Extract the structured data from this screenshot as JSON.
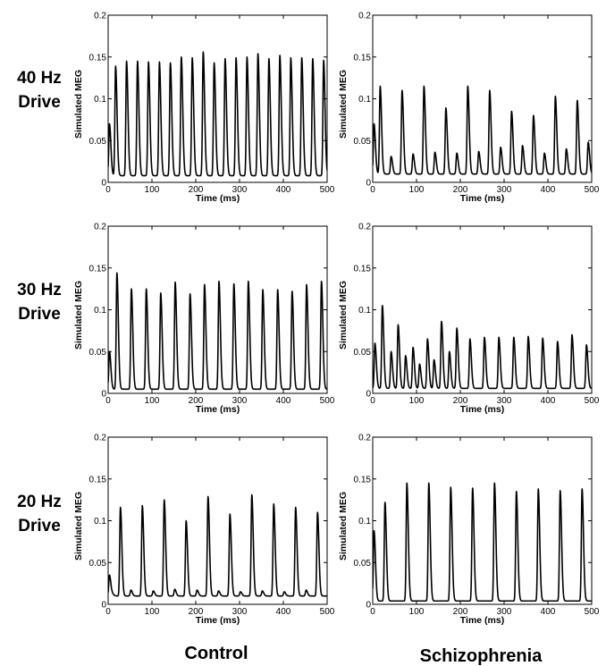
{
  "row_labels": [
    {
      "line1": "40 Hz",
      "line2": "Drive"
    },
    {
      "line1": "30 Hz",
      "line2": "Drive"
    },
    {
      "line1": "20 Hz",
      "line2": "Drive"
    }
  ],
  "col_labels": [
    "Control",
    "Schizophrenia"
  ],
  "colors": {
    "trace": "#000000",
    "axis": "#000000",
    "background": "#ffffff"
  },
  "chart_data": [
    {
      "type": "line",
      "row": 0,
      "col": 0,
      "title": "",
      "xlabel": "Time (ms)",
      "ylabel": "Simulated MEG",
      "xlim": [
        0,
        500
      ],
      "ylim": [
        0,
        0.2
      ],
      "xticks": [
        "0",
        "100",
        "200",
        "300",
        "400",
        "500"
      ],
      "yticks": [
        "0",
        "0.05",
        "0.1",
        "0.15",
        "0.2"
      ],
      "grid": false,
      "baseline": 0.008,
      "peaks": [
        {
          "t": 3,
          "v": 0.07
        },
        {
          "t": 17,
          "v": 0.139
        },
        {
          "t": 42,
          "v": 0.145
        },
        {
          "t": 67,
          "v": 0.145
        },
        {
          "t": 92,
          "v": 0.144
        },
        {
          "t": 117,
          "v": 0.144
        },
        {
          "t": 142,
          "v": 0.143
        },
        {
          "t": 167,
          "v": 0.15
        },
        {
          "t": 192,
          "v": 0.149
        },
        {
          "t": 217,
          "v": 0.156
        },
        {
          "t": 242,
          "v": 0.143
        },
        {
          "t": 267,
          "v": 0.148
        },
        {
          "t": 292,
          "v": 0.149
        },
        {
          "t": 317,
          "v": 0.15
        },
        {
          "t": 342,
          "v": 0.154
        },
        {
          "t": 367,
          "v": 0.148
        },
        {
          "t": 392,
          "v": 0.152
        },
        {
          "t": 417,
          "v": 0.149
        },
        {
          "t": 442,
          "v": 0.149
        },
        {
          "t": 467,
          "v": 0.148
        },
        {
          "t": 492,
          "v": 0.146
        }
      ]
    },
    {
      "type": "line",
      "row": 0,
      "col": 1,
      "title": "",
      "xlabel": "Time (ms)",
      "ylabel": "Simulated MEG",
      "xlim": [
        0,
        500
      ],
      "ylim": [
        0,
        0.2
      ],
      "xticks": [
        "0",
        "100",
        "200",
        "300",
        "400",
        "500"
      ],
      "yticks": [
        "0",
        "0.05",
        "0.1",
        "0.15",
        "0.2"
      ],
      "grid": false,
      "baseline": 0.01,
      "peaks": [
        {
          "t": 3,
          "v": 0.07
        },
        {
          "t": 17,
          "v": 0.115
        },
        {
          "t": 42,
          "v": 0.031
        },
        {
          "t": 67,
          "v": 0.11
        },
        {
          "t": 92,
          "v": 0.034
        },
        {
          "t": 117,
          "v": 0.115
        },
        {
          "t": 142,
          "v": 0.036
        },
        {
          "t": 167,
          "v": 0.089
        },
        {
          "t": 192,
          "v": 0.035
        },
        {
          "t": 217,
          "v": 0.115
        },
        {
          "t": 242,
          "v": 0.037
        },
        {
          "t": 267,
          "v": 0.11
        },
        {
          "t": 292,
          "v": 0.042
        },
        {
          "t": 317,
          "v": 0.085
        },
        {
          "t": 342,
          "v": 0.044
        },
        {
          "t": 367,
          "v": 0.08
        },
        {
          "t": 392,
          "v": 0.035
        },
        {
          "t": 417,
          "v": 0.103
        },
        {
          "t": 442,
          "v": 0.04
        },
        {
          "t": 467,
          "v": 0.098
        },
        {
          "t": 492,
          "v": 0.048
        }
      ]
    },
    {
      "type": "line",
      "row": 1,
      "col": 0,
      "title": "",
      "xlabel": "Time (ms)",
      "ylabel": "Simulated MEG",
      "xlim": [
        0,
        500
      ],
      "ylim": [
        0,
        0.2
      ],
      "xticks": [
        "0",
        "100",
        "200",
        "300",
        "400",
        "500"
      ],
      "yticks": [
        "0",
        "0.05",
        "0.1",
        "0.15",
        "0.2"
      ],
      "grid": false,
      "baseline": 0.005,
      "peaks": [
        {
          "t": 3,
          "v": 0.05
        },
        {
          "t": 20,
          "v": 0.144
        },
        {
          "t": 53,
          "v": 0.125
        },
        {
          "t": 87,
          "v": 0.125
        },
        {
          "t": 120,
          "v": 0.12
        },
        {
          "t": 153,
          "v": 0.133
        },
        {
          "t": 187,
          "v": 0.119
        },
        {
          "t": 220,
          "v": 0.13
        },
        {
          "t": 253,
          "v": 0.134
        },
        {
          "t": 287,
          "v": 0.131
        },
        {
          "t": 320,
          "v": 0.134
        },
        {
          "t": 353,
          "v": 0.124
        },
        {
          "t": 387,
          "v": 0.124
        },
        {
          "t": 420,
          "v": 0.122
        },
        {
          "t": 453,
          "v": 0.13
        },
        {
          "t": 487,
          "v": 0.134
        }
      ]
    },
    {
      "type": "line",
      "row": 1,
      "col": 1,
      "title": "",
      "xlabel": "Time (ms)",
      "ylabel": "Simulated MEG",
      "xlim": [
        0,
        500
      ],
      "ylim": [
        0,
        0.2
      ],
      "xticks": [
        "0",
        "100",
        "200",
        "300",
        "400",
        "500"
      ],
      "yticks": [
        "0",
        "0.05",
        "0.1",
        "0.15",
        "0.2"
      ],
      "grid": false,
      "baseline": 0.006,
      "peaks": [
        {
          "t": 5,
          "v": 0.06
        },
        {
          "t": 22,
          "v": 0.105
        },
        {
          "t": 42,
          "v": 0.05
        },
        {
          "t": 58,
          "v": 0.082
        },
        {
          "t": 75,
          "v": 0.045
        },
        {
          "t": 92,
          "v": 0.055
        },
        {
          "t": 107,
          "v": 0.035
        },
        {
          "t": 125,
          "v": 0.065
        },
        {
          "t": 140,
          "v": 0.04
        },
        {
          "t": 157,
          "v": 0.086
        },
        {
          "t": 175,
          "v": 0.05
        },
        {
          "t": 192,
          "v": 0.078
        },
        {
          "t": 222,
          "v": 0.065
        },
        {
          "t": 255,
          "v": 0.067
        },
        {
          "t": 288,
          "v": 0.067
        },
        {
          "t": 322,
          "v": 0.067
        },
        {
          "t": 355,
          "v": 0.068
        },
        {
          "t": 388,
          "v": 0.066
        },
        {
          "t": 422,
          "v": 0.062
        },
        {
          "t": 455,
          "v": 0.07
        },
        {
          "t": 488,
          "v": 0.058
        }
      ]
    },
    {
      "type": "line",
      "row": 2,
      "col": 0,
      "title": "",
      "xlabel": "Time (ms)",
      "ylabel": "Simulated MEG",
      "xlim": [
        0,
        500
      ],
      "ylim": [
        0,
        0.2
      ],
      "xticks": [
        "0",
        "100",
        "200",
        "300",
        "400",
        "500"
      ],
      "yticks": [
        "0",
        "0.05",
        "0.1",
        "0.15",
        "0.2"
      ],
      "grid": false,
      "baseline": 0.01,
      "peaks": [
        {
          "t": 3,
          "v": 0.035
        },
        {
          "t": 10,
          "v": 0.012
        },
        {
          "t": 28,
          "v": 0.116
        },
        {
          "t": 52,
          "v": 0.017
        },
        {
          "t": 78,
          "v": 0.118
        },
        {
          "t": 103,
          "v": 0.016
        },
        {
          "t": 128,
          "v": 0.125
        },
        {
          "t": 152,
          "v": 0.018
        },
        {
          "t": 178,
          "v": 0.1
        },
        {
          "t": 203,
          "v": 0.017
        },
        {
          "t": 228,
          "v": 0.129
        },
        {
          "t": 252,
          "v": 0.016
        },
        {
          "t": 278,
          "v": 0.108
        },
        {
          "t": 302,
          "v": 0.015
        },
        {
          "t": 328,
          "v": 0.131
        },
        {
          "t": 352,
          "v": 0.016
        },
        {
          "t": 378,
          "v": 0.12
        },
        {
          "t": 402,
          "v": 0.015
        },
        {
          "t": 428,
          "v": 0.116
        },
        {
          "t": 452,
          "v": 0.017
        },
        {
          "t": 478,
          "v": 0.11
        }
      ]
    },
    {
      "type": "line",
      "row": 2,
      "col": 1,
      "title": "",
      "xlabel": "Time (ms)",
      "ylabel": "Simulated MEG",
      "xlim": [
        0,
        500
      ],
      "ylim": [
        0,
        0.2
      ],
      "xticks": [
        "0",
        "100",
        "200",
        "300",
        "400",
        "500"
      ],
      "yticks": [
        "0",
        "0.05",
        "0.1",
        "0.15",
        "0.2"
      ],
      "grid": false,
      "baseline": 0.004,
      "peaks": [
        {
          "t": 3,
          "v": 0.088
        },
        {
          "t": 28,
          "v": 0.122
        },
        {
          "t": 78,
          "v": 0.145
        },
        {
          "t": 128,
          "v": 0.145
        },
        {
          "t": 178,
          "v": 0.14
        },
        {
          "t": 228,
          "v": 0.139
        },
        {
          "t": 278,
          "v": 0.145
        },
        {
          "t": 328,
          "v": 0.135
        },
        {
          "t": 378,
          "v": 0.138
        },
        {
          "t": 428,
          "v": 0.136
        },
        {
          "t": 478,
          "v": 0.138
        }
      ]
    }
  ]
}
